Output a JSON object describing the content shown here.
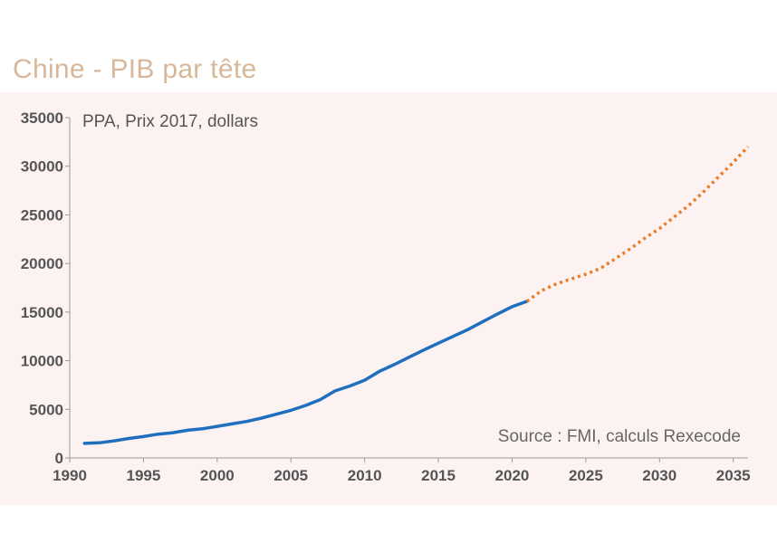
{
  "slide": {
    "title": "Chine - PIB par tête"
  },
  "colors": {
    "title": "#d8b79a",
    "panel_background": "#fdf2f2",
    "historical_series": "#1f6fbf",
    "forecast_series": "#ec7c26",
    "axis": "#999999",
    "tick_text": "#555555"
  },
  "chart_data": {
    "type": "line",
    "title": "",
    "unit_label": "PPA, Prix 2017, dollars",
    "source": "Source : FMI, calculs Rexecode",
    "xlabel": "",
    "ylabel": "",
    "xlim": [
      1990,
      2036
    ],
    "ylim": [
      0,
      35000
    ],
    "x_ticks": [
      1990,
      1995,
      2000,
      2005,
      2010,
      2015,
      2020,
      2025,
      2030,
      2035
    ],
    "y_ticks": [
      0,
      5000,
      10000,
      15000,
      20000,
      25000,
      30000,
      35000
    ],
    "grid": false,
    "legend": "none",
    "series": [
      {
        "style": "solid",
        "x": [
          1991,
          1992,
          1993,
          1994,
          1995,
          1996,
          1997,
          1998,
          1999,
          2000,
          2001,
          2002,
          2003,
          2004,
          2005,
          2006,
          2007,
          2008,
          2009,
          2010,
          2011,
          2012,
          2013,
          2014,
          2015,
          2016,
          2017,
          2018,
          2019,
          2020,
          2021
        ],
        "y": [
          1500,
          1550,
          1750,
          2000,
          2200,
          2450,
          2600,
          2850,
          3000,
          3250,
          3500,
          3750,
          4100,
          4500,
          4900,
          5400,
          6000,
          6900,
          7400,
          8000,
          8900,
          9600,
          10350,
          11100,
          11800,
          12500,
          13200,
          14000,
          14800,
          15550,
          16100
        ]
      },
      {
        "style": "dotted",
        "x": [
          2021,
          2022,
          2023,
          2024,
          2025,
          2026,
          2027,
          2028,
          2029,
          2030,
          2031,
          2032,
          2033,
          2034,
          2035,
          2036
        ],
        "y": [
          16100,
          17200,
          17900,
          18400,
          18900,
          19500,
          20500,
          21500,
          22600,
          23600,
          24800,
          26000,
          27400,
          28900,
          30400,
          32000
        ]
      }
    ]
  }
}
